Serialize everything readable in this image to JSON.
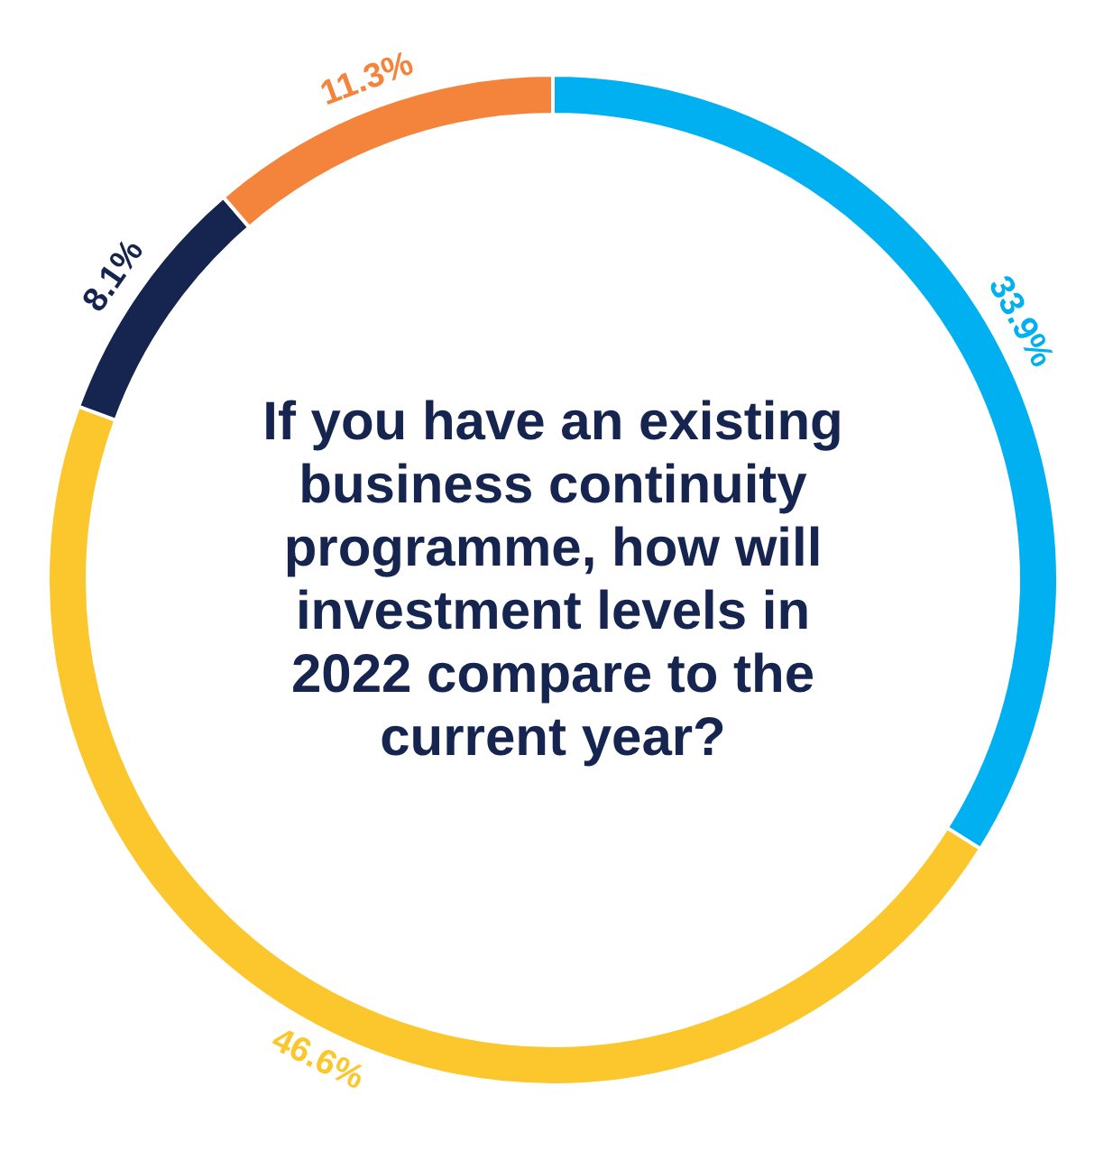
{
  "chart_data": {
    "type": "donut",
    "title": "If you have an existing business continuity programme, how will investment levels in 2022 compare to the current year?",
    "categories": [
      null,
      null,
      null,
      null
    ],
    "values": [
      33.9,
      46.6,
      8.1,
      11.3
    ],
    "colors": [
      "#00b0f0",
      "#fcc62d",
      "#16254f",
      "#f4843c"
    ],
    "value_labels": [
      "33.9%",
      "46.6%",
      "8.1%",
      "11.3%"
    ]
  }
}
